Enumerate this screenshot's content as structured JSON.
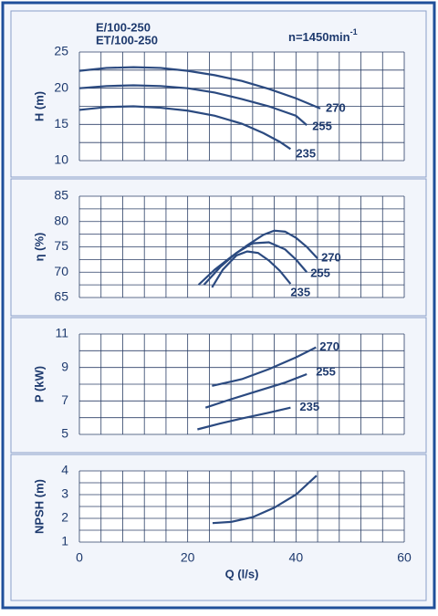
{
  "header": {
    "model_1": "E/100-250",
    "model_2": "ET/100-250",
    "speed": "n=1450min",
    "speed_exponent": "-1"
  },
  "chart_data": [
    {
      "type": "line",
      "ylabel": "H (m)",
      "xlim": [
        0,
        60
      ],
      "xgrid": [
        0,
        4,
        8,
        12,
        16,
        20,
        24,
        28,
        32,
        36,
        40,
        44,
        48,
        52,
        56,
        60
      ],
      "ylim": [
        10,
        25
      ],
      "yticks": [
        10,
        15,
        20,
        25
      ],
      "ygrid": [
        10,
        12.5,
        15,
        17.5,
        20,
        22.5,
        25
      ],
      "color": "#2b4a80",
      "series": [
        {
          "name": "270",
          "x": [
            0,
            5,
            10,
            15,
            20,
            25,
            30,
            35,
            40,
            44.5
          ],
          "values": [
            22.4,
            22.8,
            22.9,
            22.8,
            22.4,
            21.8,
            21,
            19.9,
            18.6,
            17.2
          ]
        },
        {
          "name": "255",
          "x": [
            0,
            5,
            10,
            15,
            20,
            25,
            30,
            35,
            40,
            42
          ],
          "values": [
            20,
            20.3,
            20.4,
            20.3,
            20,
            19.4,
            18.5,
            17.5,
            16.2,
            14.9
          ]
        },
        {
          "name": "235",
          "x": [
            0,
            5,
            10,
            15,
            20,
            25,
            30,
            34,
            37,
            39
          ],
          "values": [
            17,
            17.4,
            17.5,
            17.3,
            16.9,
            16.2,
            15.1,
            13.8,
            12.6,
            11.6
          ]
        }
      ]
    },
    {
      "type": "line",
      "ylabel": "η (%)",
      "xlim": [
        0,
        60
      ],
      "xgrid": [
        0,
        4,
        8,
        12,
        16,
        20,
        24,
        28,
        32,
        36,
        40,
        44,
        48,
        52,
        56,
        60
      ],
      "ylim": [
        65,
        85
      ],
      "yticks": [
        65,
        70,
        75,
        80,
        85
      ],
      "ygrid": [
        65,
        67.5,
        70,
        72.5,
        75,
        77.5,
        80,
        82.5,
        85
      ],
      "color": "#2b4a80",
      "series": [
        {
          "name": "270",
          "x": [
            22,
            25,
            28,
            31,
            34,
            36,
            38,
            40,
            42,
            44
          ],
          "values": [
            67.5,
            70.5,
            73,
            75.3,
            77.4,
            78.2,
            78,
            76.8,
            75,
            72.7
          ]
        },
        {
          "name": "255",
          "x": [
            23,
            26,
            29,
            32,
            35,
            38,
            40,
            42
          ],
          "values": [
            67.5,
            71,
            73.8,
            75.7,
            75.9,
            74.5,
            72.5,
            70
          ]
        },
        {
          "name": "235",
          "x": [
            24.5,
            26.5,
            29,
            31,
            33,
            35,
            37,
            39
          ],
          "values": [
            67,
            70.5,
            73.3,
            74.1,
            73.8,
            72.3,
            70.3,
            67.7
          ]
        }
      ]
    },
    {
      "type": "line",
      "ylabel": "P (kW)",
      "xlim": [
        0,
        60
      ],
      "xgrid": [
        0,
        4,
        8,
        12,
        16,
        20,
        24,
        28,
        32,
        36,
        40,
        44,
        48,
        52,
        56,
        60
      ],
      "ylim": [
        5,
        11
      ],
      "yticks": [
        5,
        7,
        9,
        11
      ],
      "ygrid": [
        5,
        6,
        7,
        8,
        9,
        10,
        11
      ],
      "color": "#2b4a80",
      "series": [
        {
          "name": "270",
          "x": [
            24.5,
            30,
            35,
            40,
            43.7
          ],
          "values": [
            7.9,
            8.3,
            8.9,
            9.6,
            10.2
          ]
        },
        {
          "name": "255",
          "x": [
            23.3,
            28,
            33,
            38,
            42
          ],
          "values": [
            6.6,
            7.1,
            7.6,
            8.1,
            8.6
          ]
        },
        {
          "name": "235",
          "x": [
            21.8,
            26,
            30,
            35,
            39
          ],
          "values": [
            5.3,
            5.65,
            5.95,
            6.3,
            6.6
          ]
        }
      ]
    },
    {
      "type": "line",
      "ylabel": "NPSH (m)",
      "xlabel": "Q (l/s)",
      "xlim": [
        0,
        60
      ],
      "xticks": [
        0,
        20,
        40,
        60
      ],
      "xgrid": [
        0,
        4,
        8,
        12,
        16,
        20,
        24,
        28,
        32,
        36,
        40,
        44,
        48,
        52,
        56,
        60
      ],
      "ylim": [
        1,
        4
      ],
      "yticks": [
        1,
        2,
        3,
        4
      ],
      "ygrid": [
        1,
        1.5,
        2,
        2.5,
        3,
        3.5,
        4
      ],
      "color": "#2b4a80",
      "series": [
        {
          "x": [
            24.6,
            28,
            32,
            36,
            40,
            43.8
          ],
          "values": [
            1.8,
            1.85,
            2.05,
            2.45,
            3.0,
            3.8
          ]
        }
      ]
    }
  ]
}
